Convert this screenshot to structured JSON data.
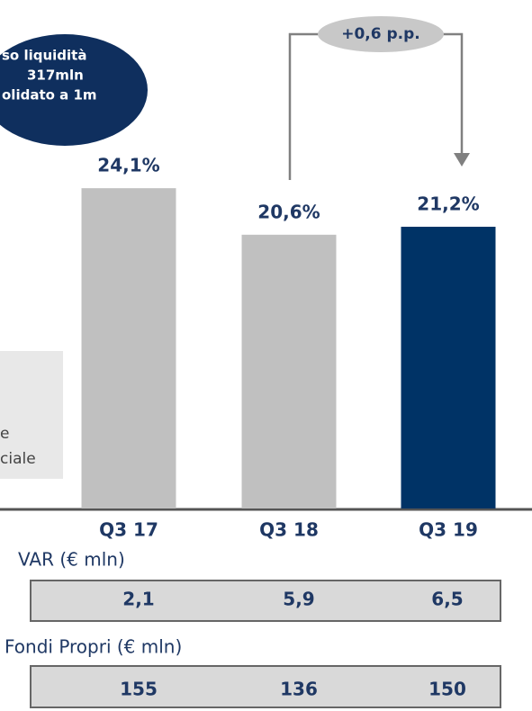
{
  "chart_data": {
    "type": "bar",
    "categories": [
      "Q3 17",
      "Q3 18",
      "Q3 19"
    ],
    "values": [
      24.1,
      20.6,
      21.2
    ],
    "value_labels": [
      "24,1%",
      "20,6%",
      "21,2%"
    ],
    "colors": [
      "#c0c0c0",
      "#c0c0c0",
      "#003366"
    ],
    "ylim": [
      0,
      30
    ],
    "annotation": "+0,6 p.p.",
    "bubble": [
      "so liquidità",
      "317mln",
      "olidato a 1m"
    ],
    "note": [
      "e",
      "ciale"
    ]
  },
  "tables": [
    {
      "title": "VAR (€ mln)",
      "cells": [
        "2,1",
        "5,9",
        "6,5"
      ]
    },
    {
      "title": "Fondi Propri (€ mln)",
      "cells": [
        "155",
        "136",
        "150"
      ]
    }
  ]
}
